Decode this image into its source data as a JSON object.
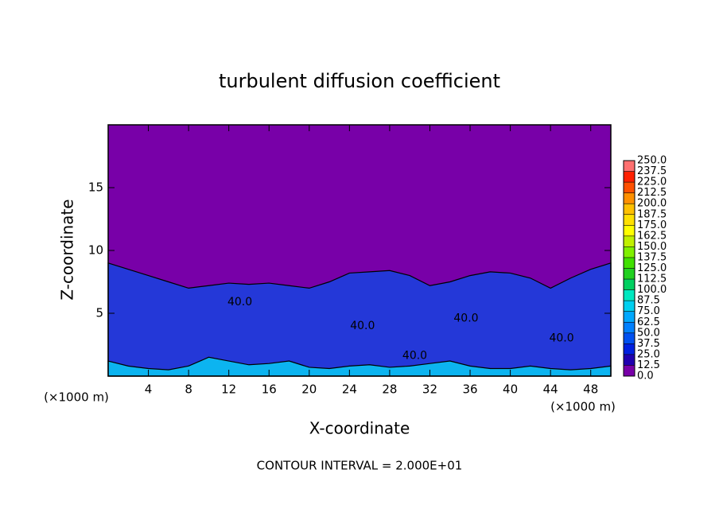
{
  "chart_data": {
    "type": "contour",
    "title": "turbulent diffusion coefficient",
    "xlabel": "X-coordinate",
    "ylabel": "Z-coordinate",
    "x_unit": "(×1000 m)",
    "y_unit": "(×1000 m)",
    "note": "CONTOUR INTERVAL = 2.000E+01",
    "xlim": [
      0,
      50
    ],
    "ylim": [
      0,
      20
    ],
    "xticks": [
      4,
      8,
      12,
      16,
      20,
      24,
      28,
      32,
      36,
      40,
      44,
      48
    ],
    "yticks": [
      5,
      10,
      15
    ],
    "background_color": "#7800a8",
    "x": [
      0,
      2,
      4,
      6,
      8,
      10,
      12,
      14,
      16,
      18,
      20,
      22,
      24,
      26,
      28,
      30,
      32,
      34,
      36,
      38,
      40,
      42,
      44,
      46,
      48,
      50
    ],
    "series": [
      {
        "color": "#2438d8",
        "values": [
          9,
          8.5,
          8,
          7.5,
          7,
          7.2,
          7.4,
          7.3,
          7.4,
          7.2,
          7,
          7.5,
          8.2,
          8.3,
          8.4,
          8,
          7.2,
          7.5,
          8,
          8.3,
          8.2,
          7.8,
          7,
          7.8,
          8.5,
          9
        ]
      },
      {
        "color": "#0cb4f0",
        "values": [
          1.2,
          0.8,
          0.6,
          0.5,
          0.8,
          1.5,
          1.2,
          0.9,
          1,
          1.2,
          0.7,
          0.6,
          0.8,
          0.9,
          0.7,
          0.8,
          1,
          1.2,
          0.8,
          0.6,
          0.6,
          0.8,
          0.6,
          0.5,
          0.6,
          0.8
        ]
      }
    ],
    "contour_labels": [
      {
        "text": "40.0",
        "x": 13.1,
        "z": 5.9
      },
      {
        "text": "40.0",
        "x": 25.3,
        "z": 4.0
      },
      {
        "text": "40.0",
        "x": 30.5,
        "z": 1.6
      },
      {
        "text": "40.0",
        "x": 35.6,
        "z": 4.6
      },
      {
        "text": "40.0",
        "x": 45.1,
        "z": 3.0
      }
    ],
    "colorbar": {
      "ticks": [
        {
          "value": 0,
          "label": "0.0"
        },
        {
          "value": 12.5,
          "label": "12.5"
        },
        {
          "value": 25,
          "label": "25.0"
        },
        {
          "value": 37.5,
          "label": "37.5"
        },
        {
          "value": 50,
          "label": "50.0"
        },
        {
          "value": 62.5,
          "label": "62.5"
        },
        {
          "value": 75,
          "label": "75.0"
        },
        {
          "value": 87.5,
          "label": "87.5"
        },
        {
          "value": 100,
          "label": "100.0"
        },
        {
          "value": 112.5,
          "label": "112.5"
        },
        {
          "value": 125,
          "label": "125.0"
        },
        {
          "value": 137.5,
          "label": "137.5"
        },
        {
          "value": 150,
          "label": "150.0"
        },
        {
          "value": 162.5,
          "label": "162.5"
        },
        {
          "value": 175,
          "label": "175.0"
        },
        {
          "value": 187.5,
          "label": "187.5"
        },
        {
          "value": 200,
          "label": "200.0"
        },
        {
          "value": 212.5,
          "label": "212.5"
        },
        {
          "value": 225,
          "label": "225.0"
        },
        {
          "value": 237.5,
          "label": "237.5"
        },
        {
          "value": 250,
          "label": "250.0"
        }
      ],
      "colors": [
        "#7800a8",
        "#2000b0",
        "#0020e0",
        "#0050f0",
        "#0080ff",
        "#00a8ff",
        "#00d0f0",
        "#00e8c0",
        "#00d060",
        "#20d020",
        "#40e000",
        "#80f000",
        "#c0f000",
        "#ffff00",
        "#ffe000",
        "#ffc000",
        "#ff9000",
        "#ff5000",
        "#ff2000",
        "#ff7070"
      ]
    }
  }
}
